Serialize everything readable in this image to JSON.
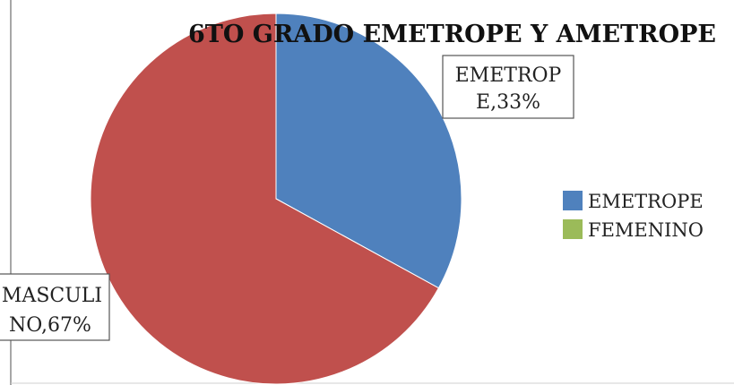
{
  "chart_data": {
    "type": "pie",
    "title": "6TO GRADO EMETROPE Y AMETROPE",
    "slices": [
      {
        "label_line1": "EMETROP",
        "label_line2": "E,33%",
        "value": 33,
        "color": "#4F81BD"
      },
      {
        "label_line1": "MASCULI",
        "label_line2": "NO,67%",
        "value": 67,
        "color": "#C0504D"
      }
    ],
    "legend_position": "right",
    "legend": [
      {
        "name": "EMETROPE",
        "color": "#4F81BD"
      },
      {
        "name": "FEMENINO",
        "color": "#9BBB59"
      }
    ]
  }
}
